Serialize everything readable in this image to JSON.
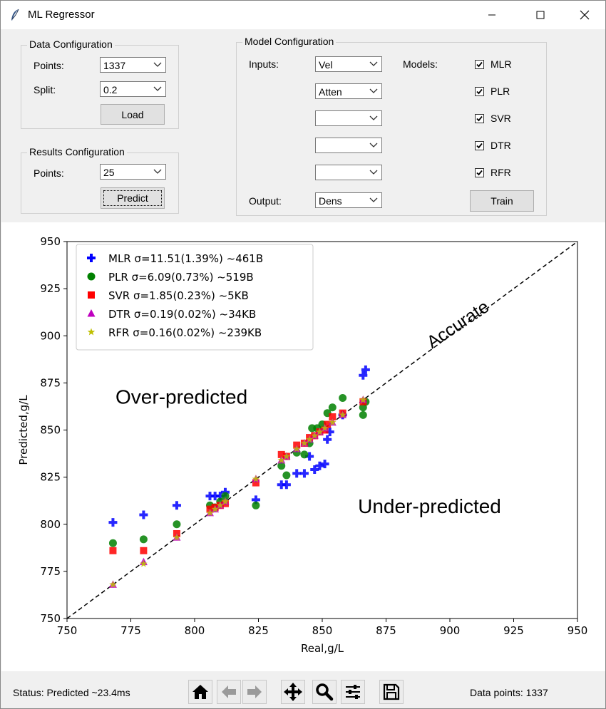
{
  "window": {
    "title": "ML Regressor"
  },
  "data_config": {
    "title": "Data Configuration",
    "points_label": "Points:",
    "points_value": "1337",
    "split_label": "Split:",
    "split_value": "0.2",
    "load_label": "Load"
  },
  "results_config": {
    "title": "Results Configuration",
    "points_label": "Points:",
    "points_value": "25",
    "predict_label": "Predict"
  },
  "model_config": {
    "title": "Model Configuration",
    "inputs_label": "Inputs:",
    "inputs": [
      "Vel",
      "Atten",
      "",
      "",
      ""
    ],
    "output_label": "Output:",
    "output_value": "Dens",
    "models_label": "Models:",
    "models": [
      {
        "name": "MLR",
        "checked": true
      },
      {
        "name": "PLR",
        "checked": true
      },
      {
        "name": "SVR",
        "checked": true
      },
      {
        "name": "DTR",
        "checked": true
      },
      {
        "name": "RFR",
        "checked": true
      }
    ],
    "train_label": "Train"
  },
  "status": {
    "left": "Status: Predicted ~23.4ms",
    "right": "Data points: 1337"
  },
  "toolbar": [
    "home-icon",
    "back-icon",
    "forward-icon",
    "pan-icon",
    "zoom-icon",
    "configure-icon",
    "save-icon"
  ],
  "chart_data": {
    "type": "scatter",
    "xlabel": "Real,g/L",
    "ylabel": "Predicted,g/L",
    "xlim": [
      750,
      950
    ],
    "ylim": [
      750,
      950
    ],
    "xticks": [
      750,
      775,
      800,
      825,
      850,
      875,
      900,
      925,
      950
    ],
    "yticks": [
      750,
      775,
      800,
      825,
      850,
      875,
      900,
      925,
      950
    ],
    "legend_position": "top-left",
    "annotations": [
      {
        "text": "Accurate",
        "x": 893,
        "y": 893
      },
      {
        "text": "Over-predicted",
        "x": 769,
        "y": 864
      },
      {
        "text": "Under-predicted",
        "x": 864,
        "y": 806
      }
    ],
    "reference_line": {
      "style": "dashed",
      "color": "#000000",
      "from": [
        750,
        750
      ],
      "to": [
        950,
        950
      ]
    },
    "series": [
      {
        "name": "MLR σ=11.51(1.39%) ~461B",
        "marker": "plus",
        "color": "#0000ff",
        "points": [
          [
            768,
            801
          ],
          [
            780,
            805
          ],
          [
            793,
            810
          ],
          [
            806,
            815
          ],
          [
            808,
            815
          ],
          [
            810,
            815
          ],
          [
            812,
            817
          ],
          [
            824,
            813
          ],
          [
            834,
            821
          ],
          [
            836,
            821
          ],
          [
            840,
            827
          ],
          [
            843,
            827
          ],
          [
            845,
            836
          ],
          [
            847,
            829
          ],
          [
            849,
            831
          ],
          [
            851,
            832
          ],
          [
            852,
            845
          ],
          [
            853,
            849
          ],
          [
            858,
            858
          ],
          [
            866,
            879
          ],
          [
            867,
            882
          ]
        ]
      },
      {
        "name": "PLR σ=6.09(0.73%) ~519B",
        "marker": "circle",
        "color": "#008000",
        "points": [
          [
            768,
            790
          ],
          [
            780,
            792
          ],
          [
            793,
            800
          ],
          [
            806,
            810
          ],
          [
            808,
            809
          ],
          [
            810,
            812
          ],
          [
            812,
            815
          ],
          [
            824,
            810
          ],
          [
            834,
            831
          ],
          [
            836,
            826
          ],
          [
            840,
            838
          ],
          [
            843,
            837
          ],
          [
            845,
            843
          ],
          [
            846,
            851
          ],
          [
            848,
            851
          ],
          [
            850,
            853
          ],
          [
            852,
            859
          ],
          [
            854,
            862
          ],
          [
            858,
            867
          ],
          [
            866,
            858
          ],
          [
            866,
            862
          ],
          [
            867,
            865
          ]
        ]
      },
      {
        "name": "SVR σ=1.85(0.23%) ~5KB",
        "marker": "square",
        "color": "#ff0000",
        "points": [
          [
            768,
            786
          ],
          [
            780,
            786
          ],
          [
            793,
            795
          ],
          [
            806,
            808
          ],
          [
            808,
            809
          ],
          [
            810,
            810
          ],
          [
            812,
            811
          ],
          [
            824,
            822
          ],
          [
            834,
            837
          ],
          [
            836,
            836
          ],
          [
            840,
            842
          ],
          [
            843,
            843
          ],
          [
            845,
            846
          ],
          [
            847,
            847
          ],
          [
            849,
            849
          ],
          [
            851,
            850
          ],
          [
            852,
            853
          ],
          [
            854,
            857
          ],
          [
            858,
            859
          ],
          [
            866,
            865
          ]
        ]
      },
      {
        "name": "DTR σ=0.19(0.02%) ~34KB",
        "marker": "triangle",
        "color": "#bf00bf",
        "points": [
          [
            768,
            768
          ],
          [
            780,
            780
          ],
          [
            793,
            793
          ],
          [
            806,
            806
          ],
          [
            808,
            808
          ],
          [
            810,
            810
          ],
          [
            812,
            812
          ],
          [
            824,
            824
          ],
          [
            834,
            834
          ],
          [
            836,
            836
          ],
          [
            840,
            840
          ],
          [
            843,
            843
          ],
          [
            845,
            845
          ],
          [
            847,
            847
          ],
          [
            849,
            849
          ],
          [
            851,
            851
          ],
          [
            854,
            854
          ],
          [
            858,
            858
          ],
          [
            866,
            866
          ]
        ]
      },
      {
        "name": "RFR σ=0.16(0.02%) ~239KB",
        "marker": "star",
        "color": "#bfbf00",
        "points": [
          [
            768,
            768
          ],
          [
            780,
            779
          ],
          [
            793,
            793
          ],
          [
            806,
            806
          ],
          [
            808,
            808
          ],
          [
            810,
            810
          ],
          [
            812,
            812
          ],
          [
            824,
            824
          ],
          [
            834,
            834
          ],
          [
            836,
            836
          ],
          [
            840,
            840
          ],
          [
            843,
            843
          ],
          [
            845,
            845
          ],
          [
            847,
            847
          ],
          [
            849,
            849
          ],
          [
            851,
            851
          ],
          [
            854,
            854
          ],
          [
            858,
            858
          ],
          [
            866,
            866
          ]
        ]
      }
    ]
  }
}
